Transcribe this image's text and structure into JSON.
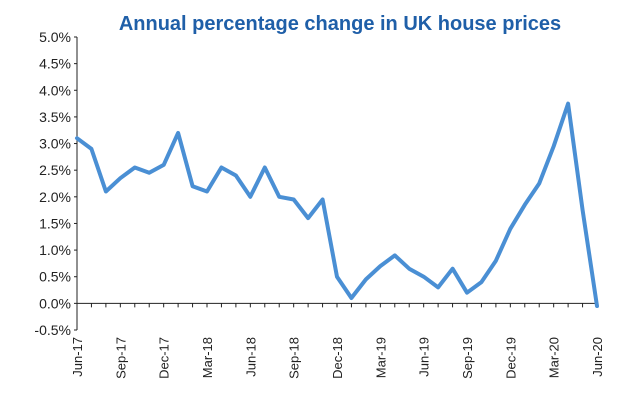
{
  "chart_data": {
    "type": "line",
    "title": "Annual percentage change in UK house prices",
    "xlabel": "",
    "ylabel": "",
    "ylim": [
      -0.5,
      5.0
    ],
    "y_ticks": [
      "5.0%",
      "4.5%",
      "4.0%",
      "3.5%",
      "3.0%",
      "2.5%",
      "2.0%",
      "1.5%",
      "1.0%",
      "0.5%",
      "0.0%",
      "-0.5%"
    ],
    "y_tick_values": [
      5.0,
      4.5,
      4.0,
      3.5,
      3.0,
      2.5,
      2.0,
      1.5,
      1.0,
      0.5,
      0.0,
      -0.5
    ],
    "x": [
      "Jun-17",
      "Jul-17",
      "Aug-17",
      "Sep-17",
      "Oct-17",
      "Nov-17",
      "Dec-17",
      "Jan-18",
      "Feb-18",
      "Mar-18",
      "Apr-18",
      "May-18",
      "Jun-18",
      "Jul-18",
      "Aug-18",
      "Sep-18",
      "Oct-18",
      "Nov-18",
      "Dec-18",
      "Jan-19",
      "Feb-19",
      "Mar-19",
      "Apr-19",
      "May-19",
      "Jun-19",
      "Jul-19",
      "Aug-19",
      "Sep-19",
      "Oct-19",
      "Nov-19",
      "Dec-19",
      "Jan-20",
      "Feb-20",
      "Mar-20",
      "Apr-20",
      "May-20",
      "Jun-20"
    ],
    "x_tick_labels": [
      "Jun-17",
      "Sep-17",
      "Dec-17",
      "Mar-18",
      "Jun-18",
      "Sep-18",
      "Dec-18",
      "Mar-19",
      "Jun-19",
      "Sep-19",
      "Dec-19",
      "Mar-20",
      "Jun-20"
    ],
    "series": [
      {
        "values": [
          3.1,
          2.9,
          2.1,
          2.35,
          2.55,
          2.45,
          2.6,
          3.2,
          2.2,
          2.1,
          2.55,
          2.4,
          2.0,
          2.55,
          2.0,
          1.95,
          1.6,
          1.95,
          0.5,
          0.1,
          0.45,
          0.7,
          0.9,
          0.65,
          0.5,
          0.3,
          0.65,
          0.2,
          0.4,
          0.8,
          1.4,
          1.85,
          2.25,
          2.95,
          3.75,
          1.75,
          -0.05
        ],
        "color": "#4a8fd4"
      }
    ],
    "grid": false,
    "zero_line": true
  }
}
